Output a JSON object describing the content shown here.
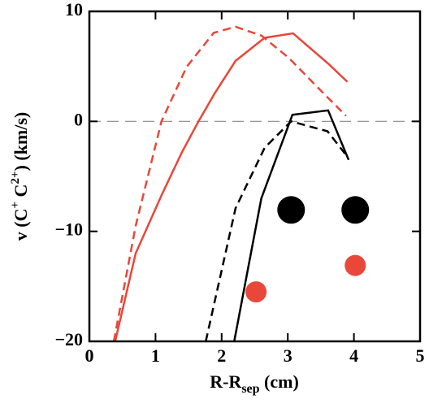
{
  "chart_data": {
    "type": "line",
    "x_label": {
      "main": "R-R",
      "sub": "sep",
      "unit": " (cm)"
    },
    "y_label": [
      "v (C",
      "+",
      "  C",
      "2+",
      ") (km/s)"
    ],
    "xlim": [
      0,
      5
    ],
    "ylim": [
      -20,
      10
    ],
    "xticks": [
      0,
      1,
      2,
      3,
      4,
      5
    ],
    "yticks": [
      {
        "value": -20,
        "label": "−20"
      },
      {
        "value": -10,
        "label": "−10"
      },
      0,
      10
    ],
    "reference_line": {
      "y": 0,
      "color": "#888888"
    },
    "series": [
      {
        "color": "#e8473a",
        "dashed": false,
        "x": [
          0.39,
          0.7,
          1.1,
          1.4,
          1.65,
          1.9,
          2.21,
          2.65,
          3.08,
          3.62,
          3.9
        ],
        "values": [
          -20,
          -12,
          -6.6,
          -2.8,
          0,
          2.6,
          5.5,
          7.6,
          8.0,
          5.2,
          3.6
        ]
      },
      {
        "color": "#e8473a",
        "dashed": true,
        "x": [
          0.37,
          0.7,
          1.09,
          1.47,
          1.88,
          2.21,
          2.6,
          3.01,
          3.5,
          3.88
        ],
        "values": [
          -20,
          -9.5,
          0,
          4.95,
          8.05,
          8.6,
          7.8,
          5.8,
          2.8,
          0.5
        ]
      },
      {
        "color": "#000000",
        "dashed": false,
        "x": [
          2.19,
          2.6,
          3.07,
          3.61,
          3.92
        ],
        "values": [
          -20,
          -7.0,
          0.6,
          1.0,
          -3.5
        ]
      },
      {
        "color": "#000000",
        "dashed": true,
        "x": [
          1.76,
          2.21,
          2.65,
          3.05,
          3.6,
          3.9
        ],
        "values": [
          -20,
          -7.9,
          -2.4,
          0,
          -0.9,
          -3.2
        ]
      },
      {
        "color": "#000000",
        "scatter": true,
        "x": [
          3.05,
          4.02
        ],
        "values": [
          -8.05,
          -8.05
        ]
      },
      {
        "color": "#e8473a",
        "scatter": true,
        "x": [
          2.52,
          4.02
        ],
        "values": [
          -15.5,
          -13.1
        ]
      }
    ]
  }
}
